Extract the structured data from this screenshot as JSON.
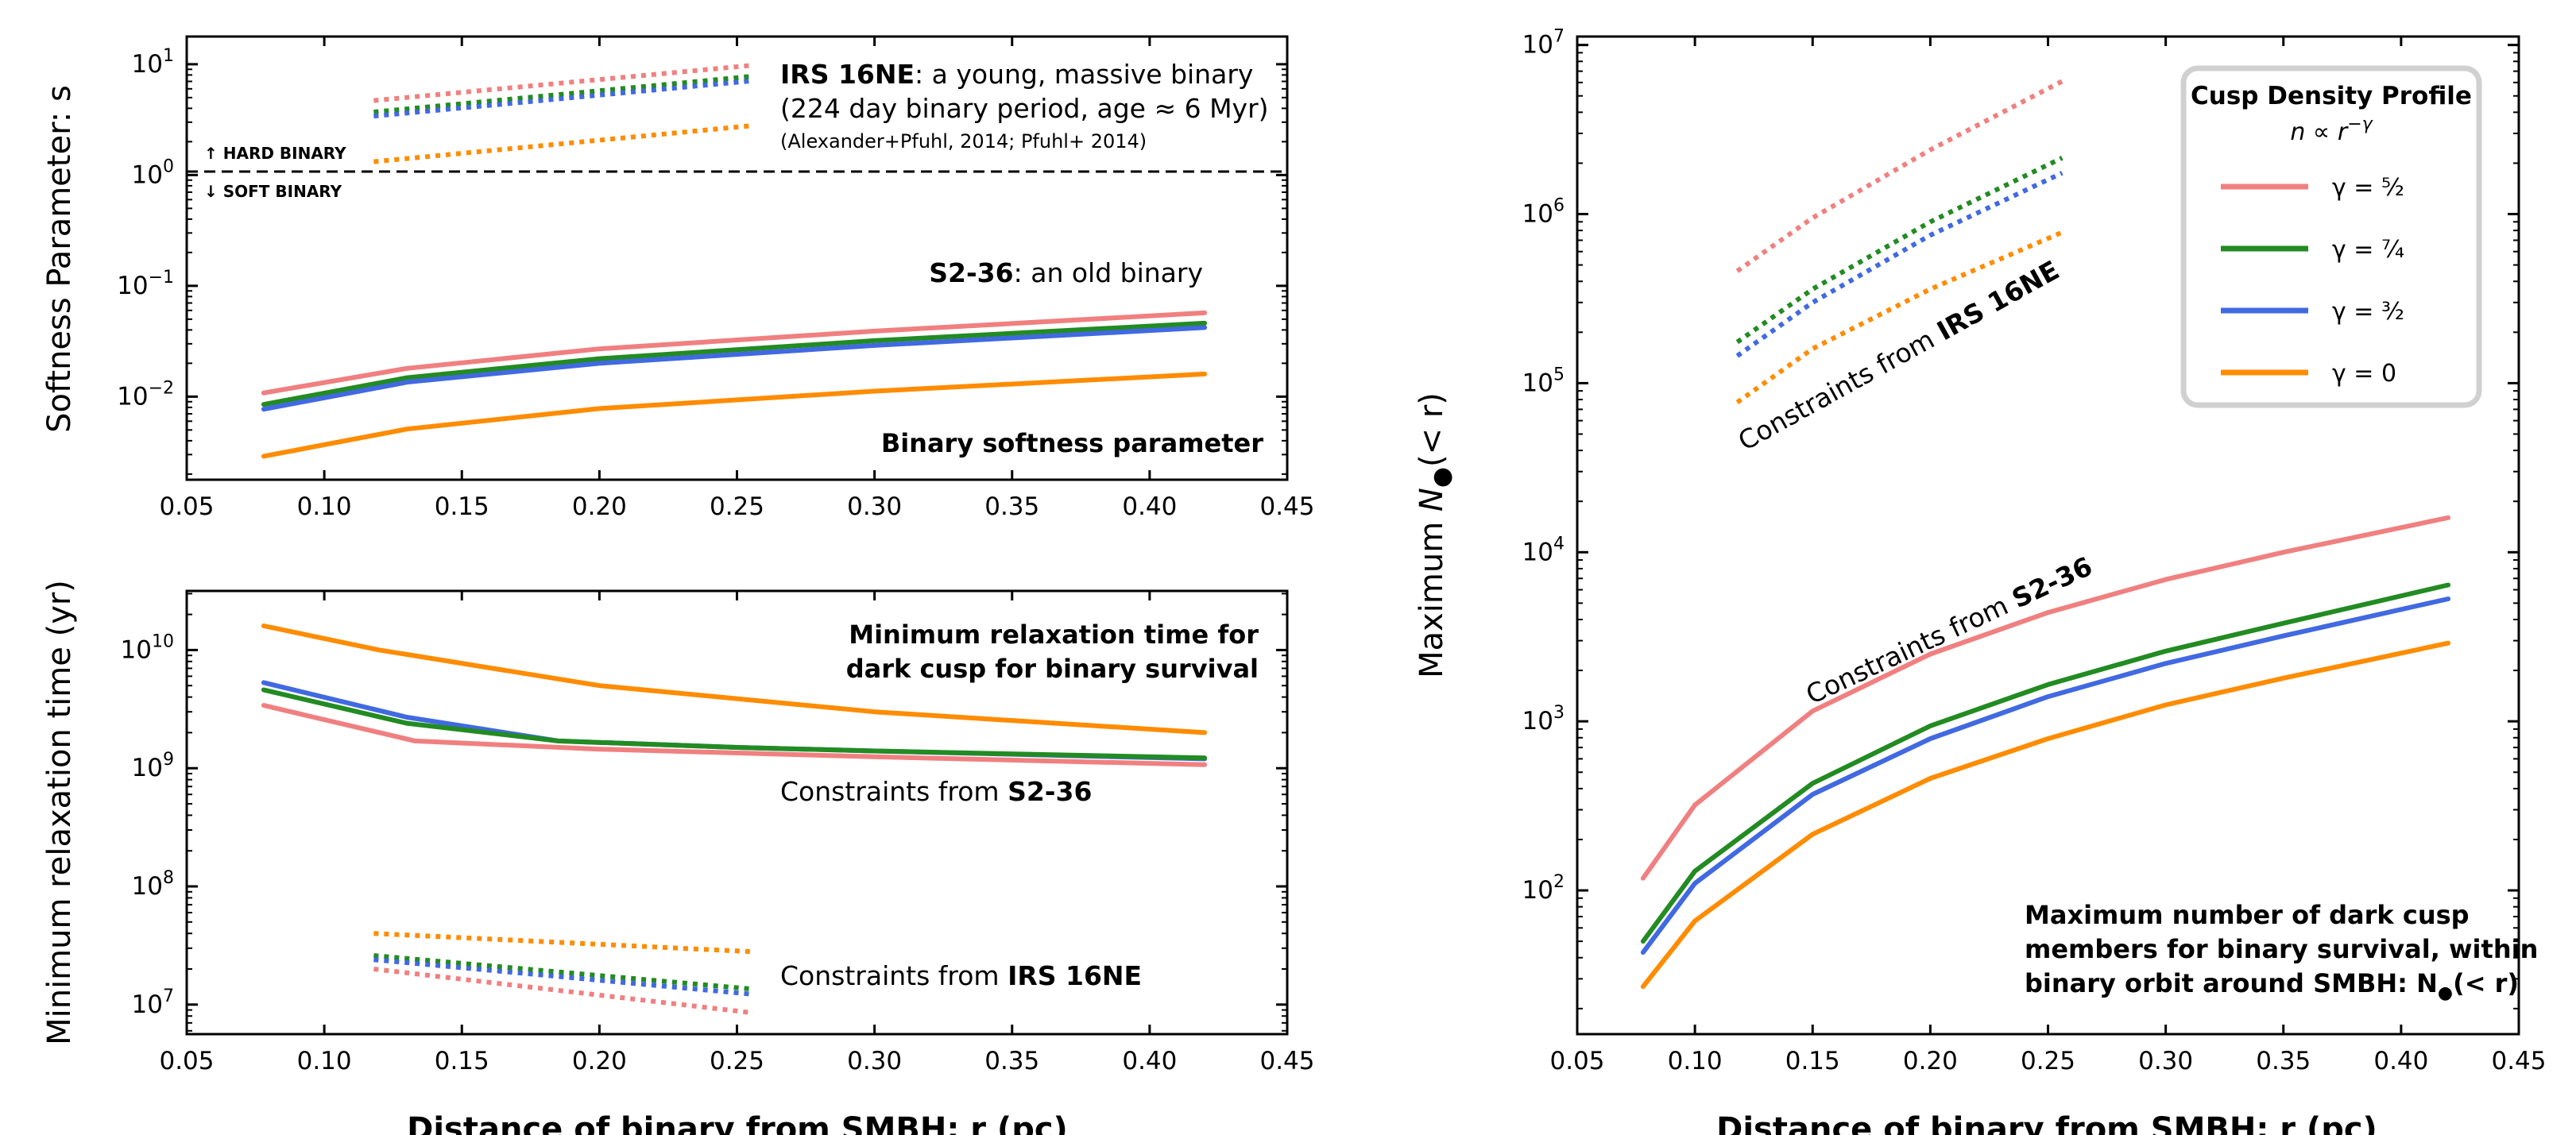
{
  "chart_data": [
    {
      "id": "softness",
      "type": "line",
      "ylabel": "Softness Parameter: s",
      "xlim": [
        0.05,
        0.45
      ],
      "ylim_log10": [
        -2.75,
        1.25
      ],
      "log_y": true,
      "x_ticks": [
        "0.05",
        "0.10",
        "0.15",
        "0.20",
        "0.25",
        "0.30",
        "0.35",
        "0.40",
        "0.45"
      ],
      "y_ticks": [
        "10",
        "10",
        "10",
        "10"
      ],
      "y_tick_exps": [
        "1",
        "0",
        "−1",
        "−2"
      ],
      "annotations": {
        "irs_bold": "IRS 16NE",
        "irs_rest": ": a young, massive binary",
        "irs_line2": "(224 day binary period, age ≈ 6 Myr)",
        "irs_refs": "(Alexander+Pfuhl, 2014; Pfuhl+ 2014)",
        "hard": "↑ HARD BINARY",
        "soft": "↓ SOFT BINARY",
        "s236_bold": "S2-36",
        "s236_rest": ": an old binary",
        "panel": "Binary softness parameter"
      },
      "series": [
        {
          "color": "#f08080",
          "style": "solid",
          "x": [
            0.078,
            0.13,
            0.2,
            0.3,
            0.42
          ],
          "y": [
            0.0108,
            0.018,
            0.027,
            0.039,
            0.057
          ]
        },
        {
          "color": "#228b22",
          "style": "solid",
          "x": [
            0.078,
            0.13,
            0.2,
            0.3,
            0.42
          ],
          "y": [
            0.0085,
            0.0148,
            0.022,
            0.032,
            0.046
          ]
        },
        {
          "color": "#4169e1",
          "style": "solid",
          "x": [
            0.078,
            0.13,
            0.2,
            0.3,
            0.42
          ],
          "y": [
            0.0077,
            0.0135,
            0.02,
            0.029,
            0.042
          ]
        },
        {
          "color": "#ff8c00",
          "style": "solid",
          "x": [
            0.078,
            0.13,
            0.2,
            0.3,
            0.42
          ],
          "y": [
            0.0029,
            0.0051,
            0.0078,
            0.0112,
            0.016
          ]
        },
        {
          "color": "#f08080",
          "style": "dotted",
          "x": [
            0.118,
            0.256
          ],
          "y": [
            4.7,
            9.8
          ]
        },
        {
          "color": "#228b22",
          "style": "dotted",
          "x": [
            0.118,
            0.256
          ],
          "y": [
            3.7,
            7.8
          ]
        },
        {
          "color": "#4169e1",
          "style": "dotted",
          "x": [
            0.118,
            0.256
          ],
          "y": [
            3.4,
            7.1
          ]
        },
        {
          "color": "#ff8c00",
          "style": "dotted",
          "x": [
            0.118,
            0.256
          ],
          "y": [
            1.32,
            2.8
          ]
        }
      ],
      "hline": 1.0
    },
    {
      "id": "relaxation",
      "type": "line",
      "ylabel": "Minimum relaxation time  (yr)",
      "xlabel": "Distance of binary from SMBH: r (pc)",
      "xlim": [
        0.05,
        0.45
      ],
      "ylim_log10": [
        6.75,
        10.5
      ],
      "log_y": true,
      "x_ticks": [
        "0.05",
        "0.10",
        "0.15",
        "0.20",
        "0.25",
        "0.30",
        "0.35",
        "0.40",
        "0.45"
      ],
      "y_ticks": [
        "10",
        "10",
        "10",
        "10"
      ],
      "y_tick_exps": [
        "10",
        "9",
        "8",
        "7"
      ],
      "annotations": {
        "title_l1": "Minimum relaxation time for",
        "title_l2": "dark cusp for binary survival",
        "s236_pre": "Constraints from ",
        "s236_bold": "S2-36",
        "irs_pre": "Constraints from ",
        "irs_bold": "IRS 16NE"
      },
      "series": [
        {
          "color": "#ff8c00",
          "style": "solid",
          "x": [
            0.078,
            0.12,
            0.2,
            0.3,
            0.42
          ],
          "y": [
            16000000000.0,
            10000000000.0,
            5000000000.0,
            3000000000.0,
            2000000000.0
          ]
        },
        {
          "color": "#4169e1",
          "style": "solid",
          "x": [
            0.078,
            0.13,
            0.185,
            0.25,
            0.3,
            0.42
          ],
          "y": [
            5300000000.0,
            2700000000.0,
            1700000000.0,
            1500000000.0,
            1400000000.0,
            1200000000.0
          ]
        },
        {
          "color": "#228b22",
          "style": "solid",
          "x": [
            0.078,
            0.13,
            0.185,
            0.25,
            0.3,
            0.42
          ],
          "y": [
            4600000000.0,
            2400000000.0,
            1700000000.0,
            1500000000.0,
            1400000000.0,
            1220000000.0
          ]
        },
        {
          "color": "#f08080",
          "style": "solid",
          "x": [
            0.078,
            0.133,
            0.2,
            0.3,
            0.42
          ],
          "y": [
            3400000000.0,
            1700000000.0,
            1450000000.0,
            1250000000.0,
            1070000000.0
          ]
        },
        {
          "color": "#ff8c00",
          "style": "dotted",
          "x": [
            0.118,
            0.256
          ],
          "y": [
            40000000.0,
            28000000.0
          ]
        },
        {
          "color": "#228b22",
          "style": "dotted",
          "x": [
            0.118,
            0.256
          ],
          "y": [
            26000000.0,
            13500000.0
          ]
        },
        {
          "color": "#4169e1",
          "style": "dotted",
          "x": [
            0.118,
            0.256
          ],
          "y": [
            24000000.0,
            12200000.0
          ]
        },
        {
          "color": "#f08080",
          "style": "dotted",
          "x": [
            0.118,
            0.256
          ],
          "y": [
            20000000.0,
            8500000.0
          ]
        }
      ]
    },
    {
      "id": "max_n",
      "type": "line",
      "ylabel_pre": "Maximum ",
      "ylabel_n": "N",
      "ylabel_post": "(< r)",
      "xlabel": "Distance of binary from SMBH: r (pc)",
      "xlim": [
        0.05,
        0.45
      ],
      "ylim_log10": [
        1.15,
        7.05
      ],
      "log_y": true,
      "x_ticks": [
        "0.05",
        "0.10",
        "0.15",
        "0.20",
        "0.25",
        "0.30",
        "0.35",
        "0.40",
        "0.45"
      ],
      "y_ticks": [
        "10",
        "10",
        "10",
        "10",
        "10",
        "10"
      ],
      "y_tick_exps": [
        "7",
        "6",
        "5",
        "4",
        "3",
        "2"
      ],
      "annotations": {
        "irs_pre": "Constraints from ",
        "irs_bold": "IRS 16NE",
        "s236_pre": "Constraints from ",
        "s236_bold": "S2-36",
        "box_l1": "Maximum number of dark cusp",
        "box_l2": "members for binary survival, within",
        "box_l3": "binary orbit around SMBH: N",
        "box_l3_tail": "(< r)"
      },
      "legend": {
        "title": "Cusp Density Profile",
        "subtitle": "n ∝ r",
        "subtitle_exp": "−γ",
        "placement": "top-right",
        "items": [
          {
            "label": "γ = ⁵⁄₂",
            "color": "#f08080"
          },
          {
            "label": "γ = ⁷⁄₄",
            "color": "#228b22"
          },
          {
            "label": "γ = ³⁄₂",
            "color": "#4169e1"
          },
          {
            "label": "γ = 0",
            "color": "#ff8c00"
          }
        ]
      },
      "series": [
        {
          "color": "#f08080",
          "style": "solid",
          "x": [
            0.078,
            0.1,
            0.15,
            0.2,
            0.25,
            0.3,
            0.35,
            0.42
          ],
          "y": [
            118,
            320,
            1150,
            2500,
            4400,
            6900,
            10000,
            16000
          ]
        },
        {
          "color": "#228b22",
          "style": "solid",
          "x": [
            0.078,
            0.1,
            0.15,
            0.2,
            0.25,
            0.3,
            0.35,
            0.42
          ],
          "y": [
            50,
            130,
            430,
            940,
            1650,
            2600,
            3800,
            6400
          ]
        },
        {
          "color": "#4169e1",
          "style": "solid",
          "x": [
            0.078,
            0.1,
            0.15,
            0.2,
            0.25,
            0.3,
            0.35,
            0.42
          ],
          "y": [
            43,
            110,
            370,
            790,
            1400,
            2200,
            3200,
            5300
          ]
        },
        {
          "color": "#ff8c00",
          "style": "solid",
          "x": [
            0.078,
            0.1,
            0.15,
            0.2,
            0.25,
            0.3,
            0.35,
            0.42
          ],
          "y": [
            27,
            66,
            215,
            460,
            790,
            1250,
            1800,
            2900
          ]
        },
        {
          "color": "#f08080",
          "style": "dotted",
          "x": [
            0.118,
            0.15,
            0.2,
            0.256
          ],
          "y": [
            460000,
            950000,
            2400000,
            6100000
          ]
        },
        {
          "color": "#228b22",
          "style": "dotted",
          "x": [
            0.118,
            0.15,
            0.2,
            0.256
          ],
          "y": [
            175000,
            360000,
            900000,
            2150000
          ]
        },
        {
          "color": "#4169e1",
          "style": "dotted",
          "x": [
            0.118,
            0.15,
            0.2,
            0.256
          ],
          "y": [
            145000,
            300000,
            750000,
            1750000
          ]
        },
        {
          "color": "#ff8c00",
          "style": "dotted",
          "x": [
            0.118,
            0.15,
            0.2,
            0.256
          ],
          "y": [
            77000,
            160000,
            360000,
            780000
          ]
        }
      ]
    }
  ]
}
